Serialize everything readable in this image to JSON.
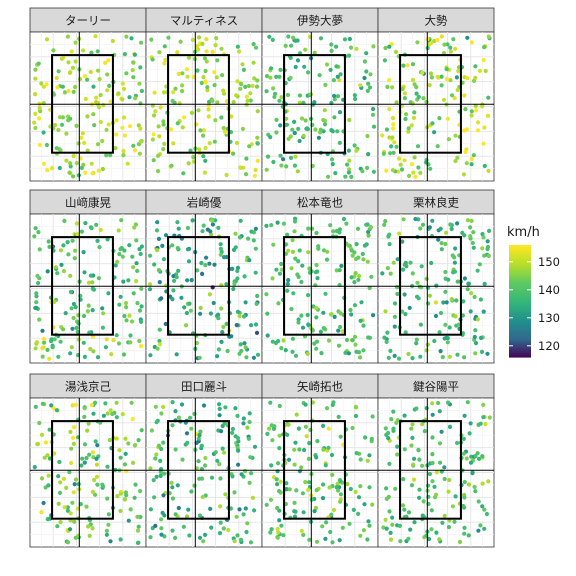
{
  "chart_data": {
    "type": "scatter",
    "title": "",
    "xlabel": "",
    "ylabel": "",
    "facets": [
      "ターリー",
      "マルティネス",
      "伊勢大夢",
      "大勢",
      "山﨑康晃",
      "岩崎優",
      "松本竜也",
      "栗林良吏",
      "湯浅京己",
      "田口麗斗",
      "矢崎拓也",
      "鍵谷陽平"
    ],
    "color_scale": {
      "title": "km/h",
      "ticks": [
        150,
        140,
        130,
        120
      ],
      "range": [
        116,
        156
      ],
      "stops": [
        "#440154",
        "#31688e",
        "#21918c",
        "#35b779",
        "#5ec962",
        "#b5de2b",
        "#fde725"
      ]
    },
    "facet_speed_profile": [
      {
        "mean": 148,
        "spread": 6
      },
      {
        "mean": 148,
        "spread": 5
      },
      {
        "mean": 140,
        "spread": 6
      },
      {
        "mean": 147,
        "spread": 6
      },
      {
        "mean": 141,
        "spread": 7
      },
      {
        "mean": 136,
        "spread": 7
      },
      {
        "mean": 140,
        "spread": 5
      },
      {
        "mean": 138,
        "spread": 6
      },
      {
        "mean": 143,
        "spread": 7
      },
      {
        "mean": 138,
        "spread": 6
      },
      {
        "mean": 141,
        "spread": 6
      },
      {
        "mean": 140,
        "spread": 5
      }
    ]
  }
}
